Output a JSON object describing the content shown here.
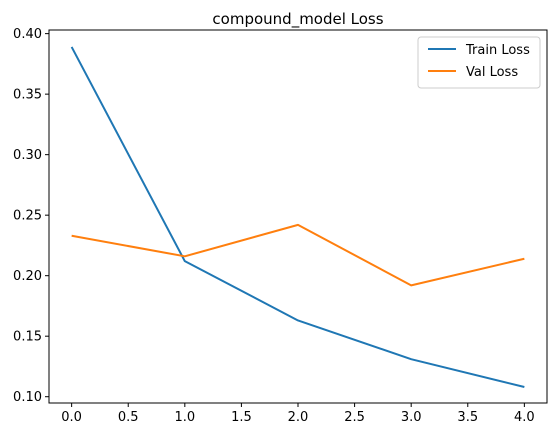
{
  "chart_data": {
    "type": "line",
    "title": "compound_model Loss",
    "xlabel": "",
    "ylabel": "",
    "x": [
      0,
      1,
      2,
      3,
      4
    ],
    "series": [
      {
        "name": "Train Loss",
        "color": "#1f77b4",
        "values": [
          0.389,
          0.212,
          0.163,
          0.131,
          0.108
        ]
      },
      {
        "name": "Val Loss",
        "color": "#ff7f0e",
        "values": [
          0.233,
          0.216,
          0.242,
          0.192,
          0.214
        ]
      }
    ],
    "xlim": [
      -0.2,
      4.2
    ],
    "ylim": [
      0.0948,
      0.403
    ],
    "xticks": [
      0.0,
      0.5,
      1.0,
      1.5,
      2.0,
      2.5,
      3.0,
      3.5,
      4.0
    ],
    "xtick_labels": [
      "0.0",
      "0.5",
      "1.0",
      "1.5",
      "2.0",
      "2.5",
      "3.0",
      "3.5",
      "4.0"
    ],
    "yticks": [
      0.1,
      0.15,
      0.2,
      0.25,
      0.3,
      0.35,
      0.4
    ],
    "ytick_labels": [
      "0.10",
      "0.15",
      "0.20",
      "0.25",
      "0.30",
      "0.35",
      "0.40"
    ],
    "grid": false,
    "legend_position": "top-right"
  }
}
